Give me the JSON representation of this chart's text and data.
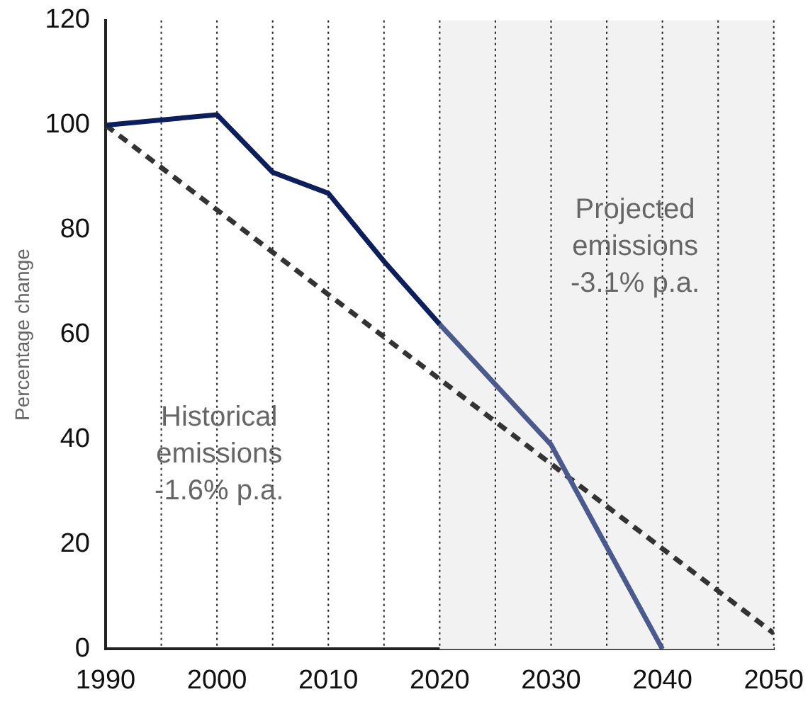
{
  "chart_data": {
    "type": "line",
    "ylabel": "Percentage change",
    "xlim": [
      1990,
      2050
    ],
    "xticks": [
      1990,
      {
        "value": 1995,
        "label": null
      },
      2000,
      {
        "value": 2005,
        "label": null
      },
      2010,
      {
        "value": 2015,
        "label": null
      },
      2020,
      {
        "value": 2025,
        "label": null
      },
      2030,
      {
        "value": 2035,
        "label": null
      },
      2040,
      {
        "value": 2045,
        "label": null
      },
      2050
    ],
    "ylim": [
      0,
      120
    ],
    "yticks": [
      0,
      20,
      40,
      60,
      80,
      100,
      120
    ],
    "grid": "x",
    "legend": false,
    "series": [
      {
        "color": "#0c1e5b",
        "x": [
          1990,
          2000,
          2005,
          2010,
          2015,
          2020
        ],
        "values": [
          100,
          102,
          91,
          87,
          74,
          62
        ],
        "line_style": "solid"
      },
      {
        "color": "#4a5a8c",
        "x": [
          2020,
          2030,
          2040
        ],
        "values": [
          62,
          39,
          0
        ],
        "line_style": "solid"
      },
      {
        "color": "#333333",
        "x": [
          1990,
          2050
        ],
        "values": [
          100,
          3
        ],
        "line_style": "dashed"
      }
    ],
    "bands": [
      {
        "axis": "x",
        "from": 2020,
        "to": 2050,
        "label": "Projected\nemissions\n-3.1% p.a.",
        "color": "#f2f2f2"
      }
    ],
    "annotations": [
      "Historical\nemissions\n-1.6% p.a."
    ]
  }
}
